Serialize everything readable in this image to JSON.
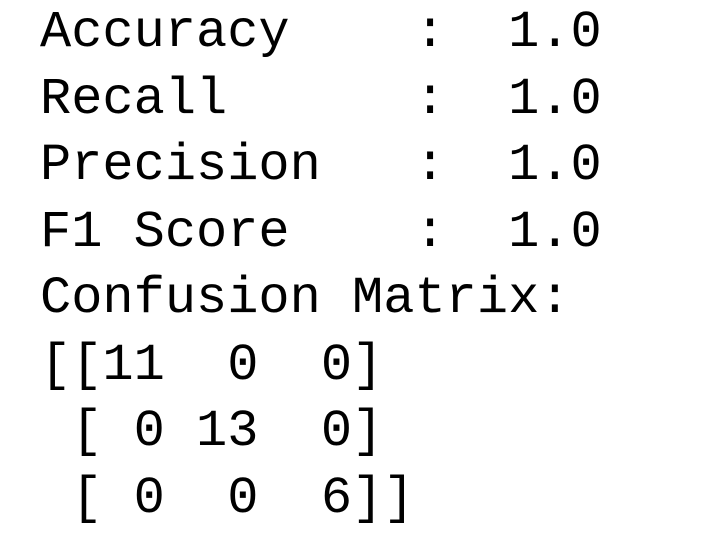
{
  "output": {
    "lines": [
      "Accuracy    :  1.0",
      "Recall      :  1.0",
      "Precision   :  1.0",
      "F1 Score    :  1.0",
      "Confusion Matrix:",
      "[[11  0  0]",
      " [ 0 13  0]",
      " [ 0  0  6]]"
    ]
  }
}
